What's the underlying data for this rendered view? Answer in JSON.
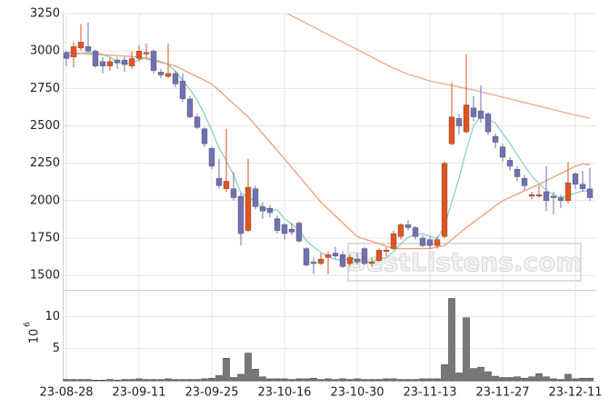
{
  "chart_data": {
    "type": "candlestick",
    "categories": [
      "23-08-28",
      null,
      null,
      null,
      null,
      null,
      null,
      null,
      null,
      null,
      "23-09-11",
      null,
      null,
      null,
      null,
      null,
      null,
      null,
      null,
      null,
      "23-09-25",
      null,
      null,
      null,
      null,
      null,
      null,
      null,
      null,
      null,
      "23-10-16",
      null,
      null,
      null,
      null,
      null,
      null,
      null,
      null,
      null,
      "23-10-30",
      null,
      null,
      null,
      null,
      null,
      null,
      null,
      null,
      null,
      "23-11-13",
      null,
      null,
      null,
      null,
      null,
      null,
      null,
      null,
      null,
      "23-11-27",
      null,
      null,
      null,
      null,
      null,
      null,
      null,
      null,
      null,
      "23-12-11",
      null,
      null
    ],
    "open": [
      2990,
      2960,
      3020,
      3030,
      3000,
      2930,
      2900,
      2940,
      2940,
      2900,
      2950,
      2980,
      3000,
      2860,
      2830,
      2850,
      2800,
      2680,
      2560,
      2480,
      2350,
      2150,
      2080,
      2080,
      2030,
      1800,
      2080,
      1960,
      1950,
      1880,
      1840,
      1810,
      1850,
      1680,
      1590,
      1580,
      1620,
      1650,
      1640,
      1580,
      1610,
      1680,
      1580,
      1600,
      1660,
      1680,
      1760,
      1840,
      1820,
      1750,
      1740,
      1700,
      1760,
      2380,
      2550,
      2460,
      2620,
      2600,
      2580,
      2430,
      2360,
      2270,
      2210,
      2150,
      2030,
      2030,
      2060,
      2030,
      2020,
      2000,
      2180,
      2110,
      2080
    ],
    "high": [
      3000,
      3060,
      3180,
      3190,
      3010,
      2960,
      2960,
      2960,
      2960,
      3000,
      3040,
      3050,
      3010,
      2880,
      3050,
      2870,
      2850,
      2700,
      2580,
      2490,
      2360,
      2280,
      2480,
      2190,
      2050,
      2280,
      2100,
      1990,
      1970,
      1900,
      1850,
      1850,
      1860,
      1690,
      1620,
      1650,
      1660,
      1690,
      1660,
      1640,
      1650,
      1690,
      1620,
      1680,
      1690,
      1800,
      1850,
      1870,
      1830,
      1770,
      1760,
      1760,
      2260,
      2790,
      2580,
      2980,
      2700,
      2770,
      2590,
      2450,
      2380,
      2290,
      2230,
      2170,
      2060,
      2100,
      2230,
      2060,
      2040,
      2260,
      2190,
      2200,
      2220
    ],
    "low": [
      2900,
      2890,
      3000,
      2990,
      2890,
      2850,
      2870,
      2880,
      2860,
      2880,
      2930,
      2950,
      2850,
      2820,
      2820,
      2760,
      2660,
      2550,
      2480,
      2360,
      2210,
      2080,
      2060,
      2000,
      1700,
      1790,
      1940,
      1880,
      1890,
      1780,
      1740,
      1770,
      1720,
      1560,
      1510,
      1570,
      1510,
      1610,
      1550,
      1560,
      1570,
      1570,
      1560,
      1590,
      1630,
      1670,
      1740,
      1800,
      1740,
      1690,
      1680,
      1680,
      1750,
      2370,
      2440,
      2450,
      2530,
      2520,
      2440,
      2350,
      2260,
      2200,
      2130,
      2070,
      2010,
      2020,
      1930,
      1910,
      1950,
      1980,
      2080,
      2060,
      2000
    ],
    "close": [
      2950,
      3030,
      3060,
      3000,
      2900,
      2900,
      2930,
      2920,
      2910,
      2950,
      3000,
      2990,
      2870,
      2840,
      2850,
      2780,
      2680,
      2560,
      2490,
      2380,
      2230,
      2100,
      2130,
      2020,
      1780,
      2090,
      1960,
      1930,
      1920,
      1800,
      1780,
      1790,
      1730,
      1570,
      1580,
      1610,
      1640,
      1630,
      1560,
      1620,
      1590,
      1580,
      1590,
      1670,
      1670,
      1780,
      1840,
      1820,
      1760,
      1700,
      1700,
      1740,
      2250,
      2560,
      2500,
      2640,
      2560,
      2550,
      2460,
      2390,
      2290,
      2230,
      2160,
      2100,
      2040,
      2040,
      2000,
      2020,
      2000,
      2120,
      2110,
      2080,
      2020
    ],
    "up_color": "#e2531f",
    "down_color": "#7071b3",
    "series": [
      {
        "color": "#86d5be",
        "values": [
          2960,
          2975,
          2985,
          2990,
          2988,
          2978,
          2958,
          2930,
          2912,
          2922,
          2942,
          2954,
          2944,
          2930,
          2910,
          2866,
          2804,
          2742,
          2672,
          2578,
          2468,
          2352,
          2266,
          2172,
          2052,
          2024,
          1996,
          1956,
          1936,
          1940,
          1878,
          1844,
          1804,
          1734,
          1690,
          1656,
          1626,
          1606,
          1604,
          1612,
          1608,
          1596,
          1588,
          1610,
          1620,
          1658,
          1710,
          1756,
          1774,
          1780,
          1764,
          1744,
          1830,
          1990,
          2150,
          2338,
          2502,
          2562,
          2542,
          2520,
          2450,
          2384,
          2306,
          2234,
          2164,
          2114,
          2068,
          2040,
          2020,
          2036,
          2050,
          2066,
          2066
        ]
      },
      {
        "color": "#e99f78",
        "values": [
          2990,
          2987,
          2984,
          2981,
          2978,
          2975,
          2972,
          2969,
          2966,
          2963,
          2960,
          2948,
          2936,
          2924,
          2912,
          2900,
          2876,
          2852,
          2828,
          2804,
          2780,
          2736,
          2692,
          2648,
          2604,
          2560,
          2504,
          2448,
          2392,
          2336,
          2280,
          2222,
          2164,
          2106,
          2048,
          1990,
          1944,
          1898,
          1852,
          1806,
          1760,
          1744,
          1728,
          1712,
          1696,
          1680,
          1680,
          1680,
          1680,
          1680,
          1680,
          1690,
          1700,
          1740,
          1780,
          1820,
          1856,
          1892,
          1928,
          1964,
          2000,
          2022,
          2044,
          2066,
          2088,
          2110,
          2134,
          2158,
          2182,
          2206,
          2230,
          2245,
          2240
        ]
      },
      {
        "color": "#eba88e",
        "values": [
          null,
          null,
          null,
          null,
          null,
          null,
          null,
          null,
          null,
          null,
          null,
          null,
          null,
          null,
          null,
          null,
          null,
          null,
          null,
          null,
          null,
          null,
          null,
          null,
          null,
          null,
          null,
          null,
          null,
          null,
          3260,
          3235,
          3210,
          3185,
          3160,
          3135,
          3110,
          3085,
          3060,
          3035,
          3010,
          2985,
          2960,
          2935,
          2910,
          2885,
          2865,
          2845,
          2830,
          2815,
          2800,
          2790,
          2780,
          2770,
          2760,
          2750,
          2740,
          2728,
          2716,
          2704,
          2692,
          2680,
          2668,
          2656,
          2644,
          2632,
          2620,
          2608,
          2596,
          2584,
          2572,
          2562,
          2550
        ]
      }
    ],
    "ylim": [
      1410,
      3250
    ],
    "yticks": [
      1500,
      1750,
      2000,
      2250,
      2500,
      2750,
      3000,
      3250
    ],
    "grid": true,
    "watermark": "BestListens.com",
    "volume": {
      "type": "bar",
      "color": "#777777",
      "values": [
        0.2,
        0.2,
        0.2,
        0.2,
        0.1,
        0.1,
        0.2,
        0.1,
        0.2,
        0.2,
        0.3,
        0.2,
        0.2,
        0.2,
        0.3,
        0.2,
        0.2,
        0.2,
        0.2,
        0.3,
        0.4,
        0.8,
        3.5,
        0.5,
        1.0,
        4.3,
        1.8,
        0.6,
        0.3,
        0.3,
        0.3,
        0.2,
        0.3,
        0.3,
        0.4,
        0.2,
        0.3,
        0.2,
        0.3,
        0.2,
        0.3,
        0.2,
        0.2,
        0.2,
        0.3,
        0.3,
        0.2,
        0.2,
        0.2,
        0.3,
        0.3,
        0.3,
        2.5,
        12.8,
        1.2,
        9.8,
        1.9,
        2.1,
        1.4,
        0.7,
        0.5,
        0.5,
        0.6,
        0.4,
        0.6,
        1.1,
        0.6,
        0.3,
        0.2,
        1.0,
        0.3,
        0.4,
        0.4
      ],
      "ylim": [
        0,
        14
      ],
      "yticks": [
        5,
        10
      ],
      "ylabel": "10",
      "ylabel_exponent": "6"
    }
  }
}
